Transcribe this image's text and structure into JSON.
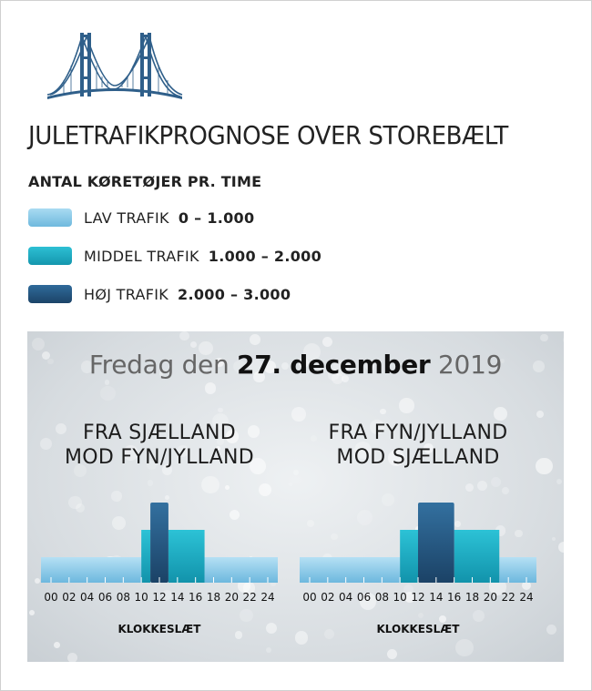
{
  "title": "JULETRAFIKPROGNOSE OVER STOREBÆLT",
  "legend": {
    "title": "ANTAL KØRETØJER PR. TIME",
    "items": [
      {
        "label": "LAV TRAFIK",
        "range": "0 – 1.000",
        "color": "#8ccbe8"
      },
      {
        "label": "MIDDEL TRAFIK",
        "range": "1.000 – 2.000",
        "color": "#1aa9c0"
      },
      {
        "label": "HØJ TRAFIK",
        "range": "2.000 – 3.000",
        "color": "#22537e"
      }
    ]
  },
  "date": {
    "prefix": "Fredag den",
    "day": "27. december",
    "year": "2019"
  },
  "colors": {
    "low": "#8ccbe8",
    "medium": "#1aa9c0",
    "high": "#22537e",
    "bridge": "#2f5f8a"
  },
  "chart_data": [
    {
      "type": "bar",
      "title_lines": [
        "FRA SJÆLLAND",
        "MOD FYN/JYLLAND"
      ],
      "xlabel": "KLOKKESLÆT",
      "x_ticks": [
        "00",
        "02",
        "04",
        "06",
        "08",
        "10",
        "12",
        "14",
        "16",
        "18",
        "20",
        "22",
        "24"
      ],
      "xlim": [
        0,
        24
      ],
      "levels": [
        "low",
        "medium",
        "high"
      ],
      "segments": [
        {
          "start": 0,
          "end": 10,
          "level": "low"
        },
        {
          "start": 10,
          "end": 11,
          "level": "medium"
        },
        {
          "start": 11,
          "end": 13,
          "level": "high"
        },
        {
          "start": 13,
          "end": 17,
          "level": "medium"
        },
        {
          "start": 17,
          "end": 24,
          "level": "low"
        }
      ]
    },
    {
      "type": "bar",
      "title_lines": [
        "FRA FYN/JYLLAND",
        "MOD SJÆLLAND"
      ],
      "xlabel": "KLOKKESLÆT",
      "x_ticks": [
        "00",
        "02",
        "04",
        "06",
        "08",
        "10",
        "12",
        "14",
        "16",
        "18",
        "20",
        "22",
        "24"
      ],
      "xlim": [
        0,
        24
      ],
      "levels": [
        "low",
        "medium",
        "high"
      ],
      "segments": [
        {
          "start": 0,
          "end": 10,
          "level": "low"
        },
        {
          "start": 10,
          "end": 12,
          "level": "medium"
        },
        {
          "start": 12,
          "end": 16,
          "level": "high"
        },
        {
          "start": 16,
          "end": 21,
          "level": "medium"
        },
        {
          "start": 21,
          "end": 24,
          "level": "low"
        }
      ]
    }
  ]
}
